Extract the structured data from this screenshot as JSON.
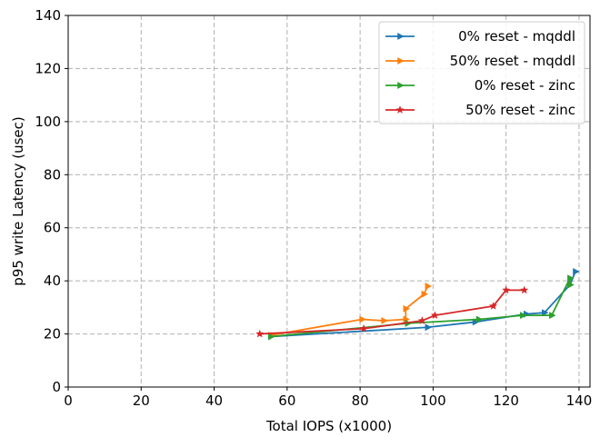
{
  "chart_data": {
    "type": "line",
    "title": "",
    "xlabel": "Total IOPS (x1000)",
    "ylabel": "p95 write Latency (usec)",
    "xlim": [
      0,
      143
    ],
    "ylim": [
      0,
      140
    ],
    "xticks": [
      0,
      20,
      40,
      60,
      80,
      100,
      120,
      140
    ],
    "yticks": [
      0,
      20,
      40,
      60,
      80,
      100,
      120,
      140
    ],
    "grid": true,
    "legend_position": "top-right",
    "series": [
      {
        "name": "0% reset - mqddl",
        "color": "#1f77b4",
        "marker": "triangle-right",
        "points": [
          [
            55.5,
            19
          ],
          [
            98.5,
            22.5
          ],
          [
            111.5,
            24.5
          ],
          [
            125.5,
            27.5
          ],
          [
            130.5,
            28
          ],
          [
            137.5,
            38.5
          ],
          [
            139,
            43.5
          ]
        ]
      },
      {
        "name": "50% reset - mqddl",
        "color": "#ff7f0e",
        "marker": "triangle-right",
        "points": [
          [
            55.5,
            19.5
          ],
          [
            80.5,
            25.5
          ],
          [
            86.5,
            25
          ],
          [
            92.5,
            25.5
          ],
          [
            92.5,
            29.5
          ],
          [
            97.5,
            35
          ],
          [
            98.5,
            38
          ]
        ]
      },
      {
        "name": "0% reset - zinc",
        "color": "#2ca02c",
        "marker": "triangle-right",
        "points": [
          [
            55.5,
            19
          ],
          [
            93,
            24
          ],
          [
            112.5,
            25.5
          ],
          [
            124.5,
            27
          ],
          [
            132.5,
            27
          ],
          [
            137.5,
            41
          ],
          [
            137.5,
            38.5
          ]
        ]
      },
      {
        "name": "50% reset - zinc",
        "color": "#d62728",
        "marker": "star",
        "points": [
          [
            52.5,
            20
          ],
          [
            81,
            22
          ],
          [
            97,
            25
          ],
          [
            100.5,
            27
          ],
          [
            116.5,
            30.5
          ],
          [
            120,
            36.5
          ],
          [
            125,
            36.5
          ]
        ]
      }
    ]
  }
}
